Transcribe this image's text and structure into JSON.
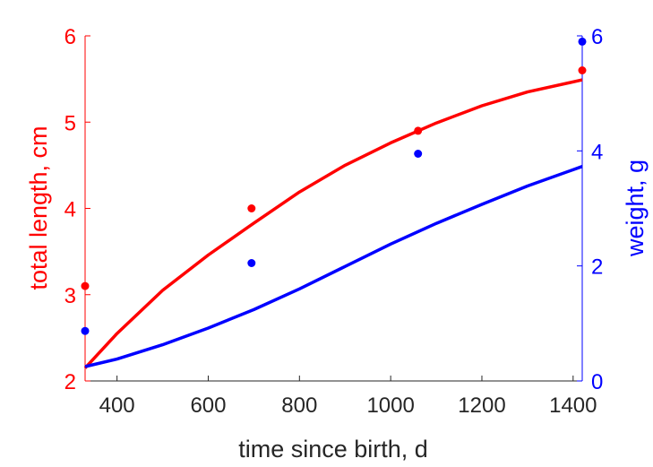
{
  "chart_data": {
    "type": "line",
    "xlabel": "time since birth, d",
    "ylabel_left": "total length, cm",
    "ylabel_right": "weight, g",
    "xlim": [
      330,
      1420
    ],
    "ylim_left": [
      2,
      6
    ],
    "ylim_right": [
      0,
      6
    ],
    "x_ticks": [
      400,
      600,
      800,
      1000,
      1200,
      1400
    ],
    "y_ticks_left": [
      2,
      3,
      4,
      5,
      6
    ],
    "y_ticks_right": [
      0,
      2,
      4,
      6
    ],
    "colors": {
      "length": "#ff0000",
      "weight": "#0000ff",
      "axis_x": "#262626"
    },
    "series": [
      {
        "axis": "left",
        "kind": "points",
        "color": "#ff0000",
        "x": [
          330,
          695,
          1060,
          1420
        ],
        "y": [
          3.1,
          4.0,
          4.9,
          5.6
        ]
      },
      {
        "axis": "left",
        "kind": "line",
        "color": "#ff0000",
        "x": [
          330,
          400,
          500,
          600,
          700,
          800,
          900,
          1000,
          1100,
          1200,
          1300,
          1420
        ],
        "y": [
          2.15,
          2.55,
          3.05,
          3.46,
          3.83,
          4.19,
          4.5,
          4.76,
          4.99,
          5.19,
          5.35,
          5.49
        ]
      },
      {
        "axis": "right",
        "kind": "points",
        "color": "#0000ff",
        "x": [
          330,
          695,
          1060,
          1420
        ],
        "y": [
          0.87,
          2.05,
          3.95,
          5.9
        ]
      },
      {
        "axis": "right",
        "kind": "line",
        "color": "#0000ff",
        "x": [
          330,
          400,
          500,
          600,
          700,
          800,
          900,
          1000,
          1100,
          1200,
          1300,
          1420
        ],
        "y": [
          0.25,
          0.38,
          0.63,
          0.92,
          1.24,
          1.6,
          1.99,
          2.38,
          2.74,
          3.07,
          3.39,
          3.73
        ]
      }
    ]
  }
}
